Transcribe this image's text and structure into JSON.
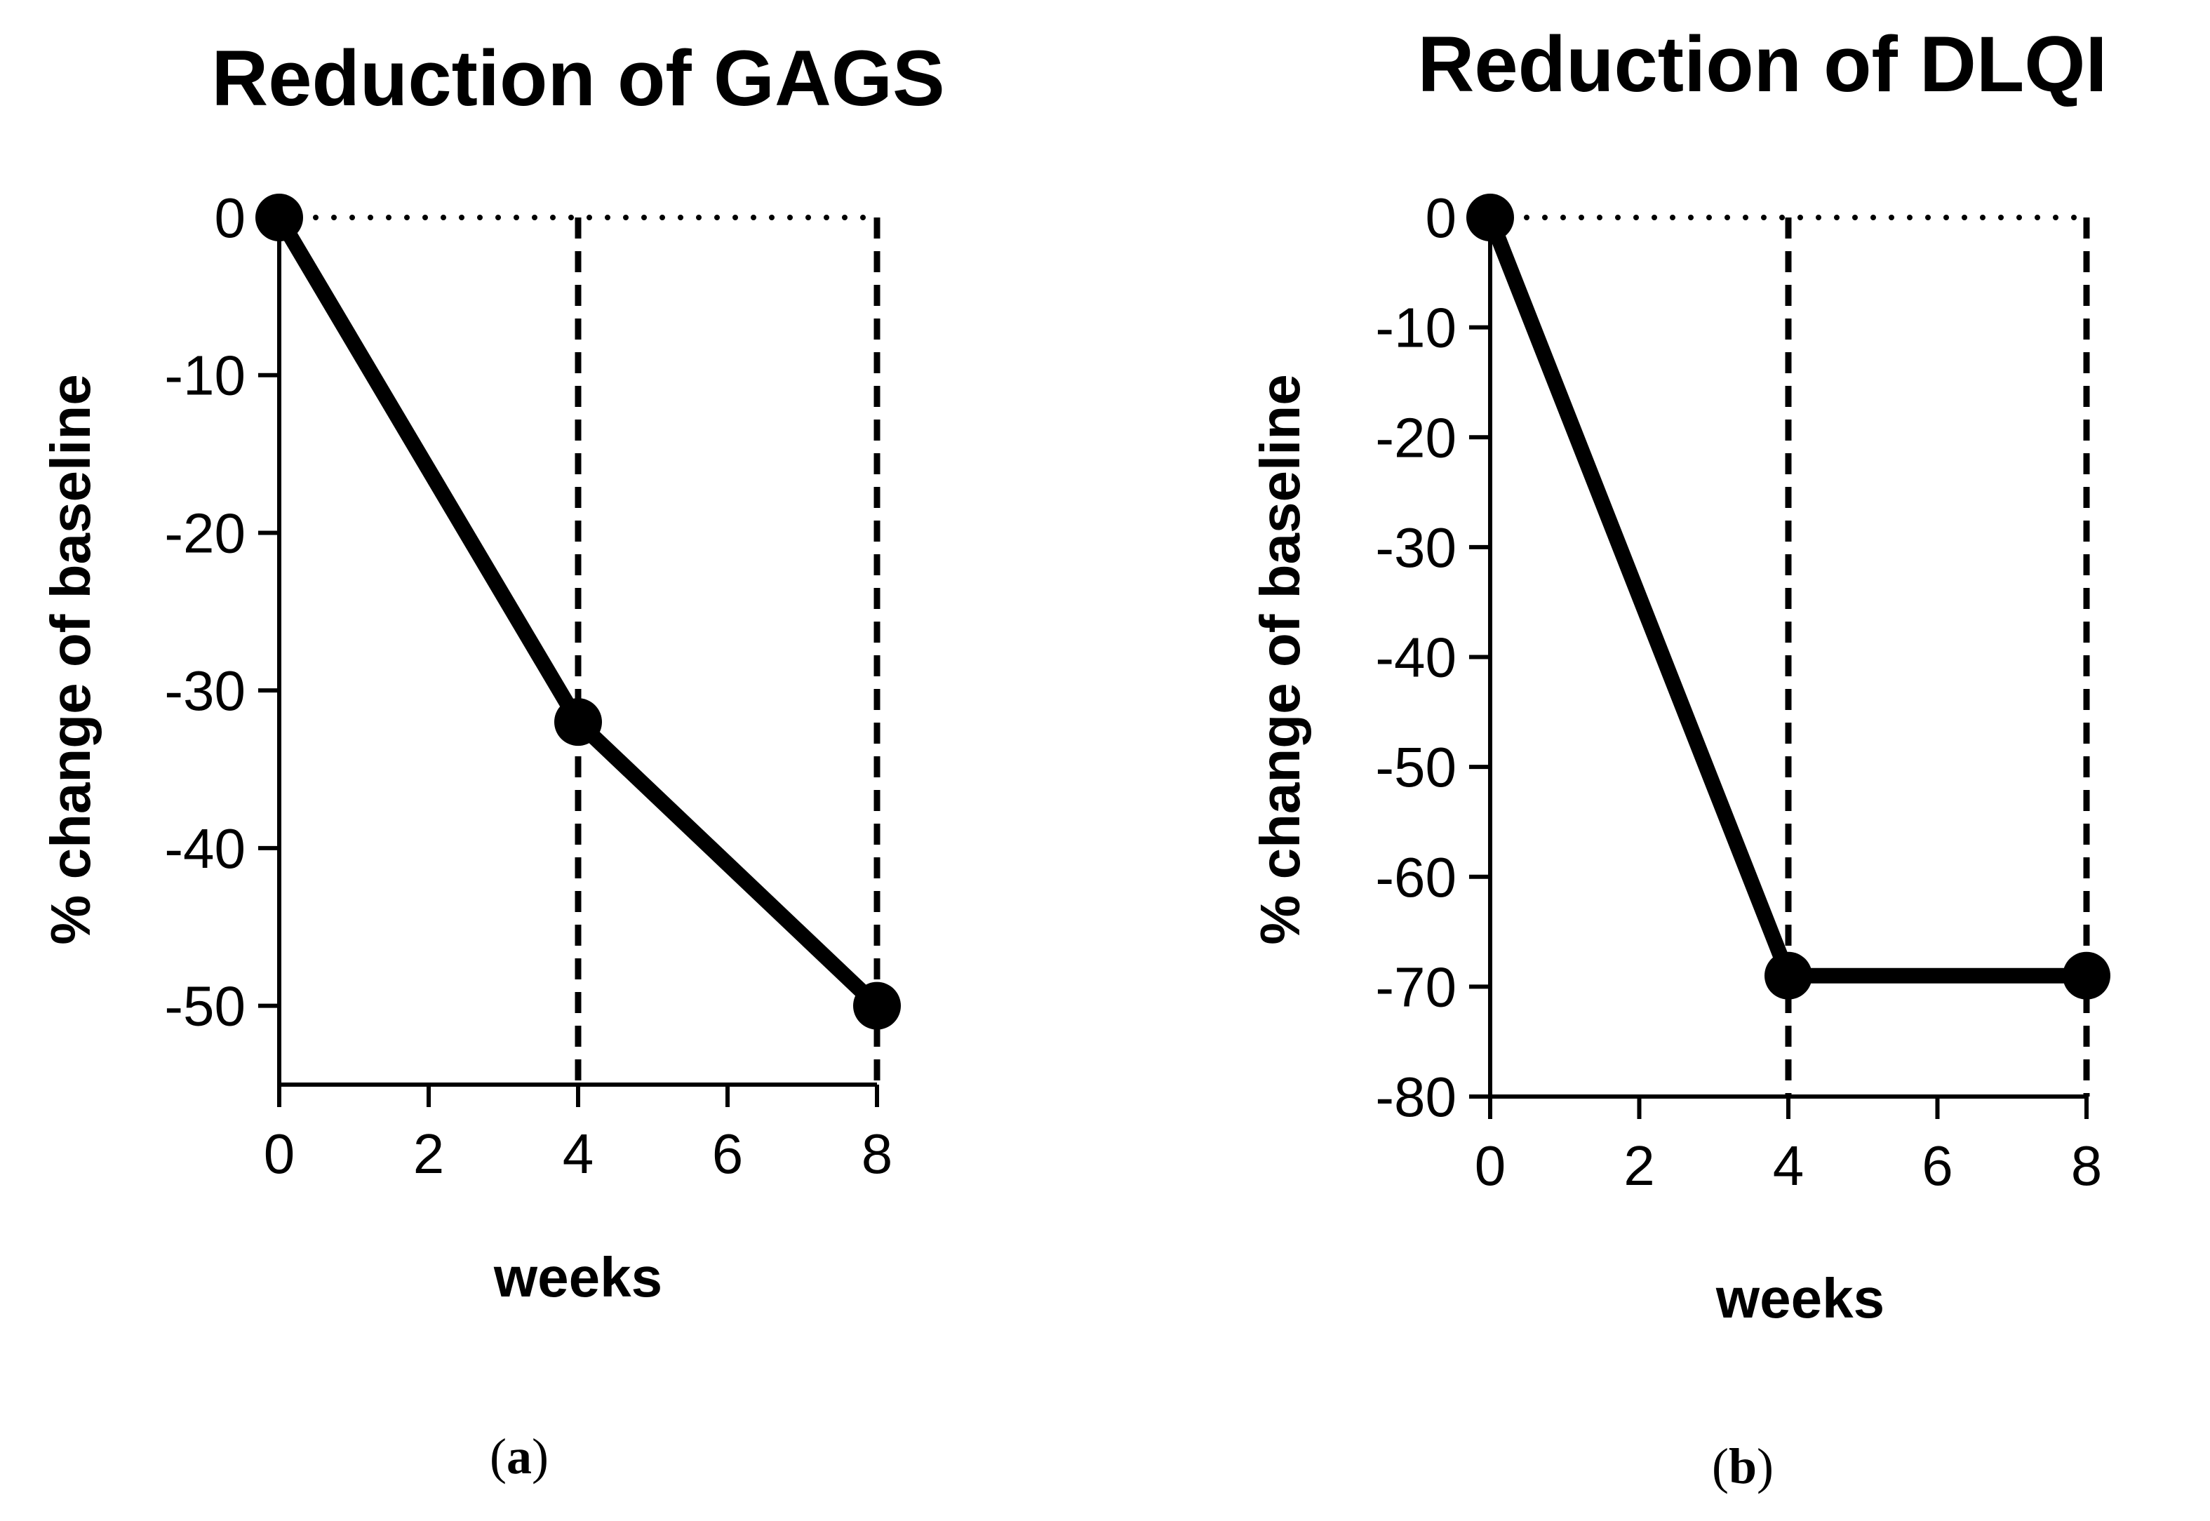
{
  "chart_data": [
    {
      "type": "line",
      "panel": "a",
      "title": "Reduction of GAGS",
      "xlabel": "weeks",
      "ylabel": "% change of baseline",
      "x": [
        0,
        4,
        8
      ],
      "values": [
        0,
        -32,
        -50
      ],
      "xlim": [
        0,
        8
      ],
      "ylim": [
        -55,
        0
      ],
      "xticks": [
        "0",
        "2",
        "4",
        "6",
        "8"
      ],
      "yticks": [
        "0",
        "-10",
        "-20",
        "-30",
        "-40",
        "-50"
      ],
      "reference_line": 0,
      "vertical_markers": [
        4,
        8
      ]
    },
    {
      "type": "line",
      "panel": "b",
      "title": "Reduction of DLQI",
      "xlabel": "weeks",
      "ylabel": "% change of baseline",
      "x": [
        0,
        4,
        8
      ],
      "values": [
        0,
        -69,
        -69
      ],
      "xlim": [
        0,
        8
      ],
      "ylim": [
        -80,
        0
      ],
      "xticks": [
        "0",
        "2",
        "4",
        "6",
        "8"
      ],
      "yticks": [
        "0",
        "-10",
        "-20",
        "-30",
        "-40",
        "-50",
        "-60",
        "-70",
        "-80"
      ],
      "reference_line": 0,
      "vertical_markers": [
        4,
        8
      ]
    }
  ],
  "labels": {
    "panel_a": {
      "open": "(",
      "letter": "a",
      "close": ")"
    },
    "panel_b": {
      "open": "(",
      "letter": "b",
      "close": ")"
    }
  },
  "colors": {
    "ink": "#000000",
    "background": "#ffffff"
  }
}
